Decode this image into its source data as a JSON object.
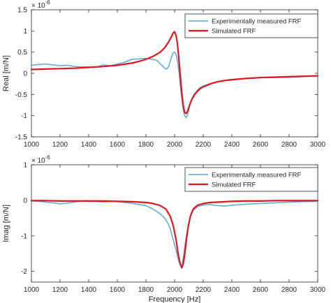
{
  "chart_data": [
    {
      "type": "line",
      "xlabel": "",
      "ylabel": "Real [m/N]",
      "exponent_label": "× 10",
      "exponent_power": "-6",
      "xlim": [
        1000,
        3000
      ],
      "ylim": [
        -1.5,
        1.5
      ],
      "xticks": [
        "1000",
        "1200",
        "1400",
        "1600",
        "1800",
        "2000",
        "2200",
        "2400",
        "2600",
        "2800",
        "3000"
      ],
      "yticks": [
        "-1.5",
        "-1",
        "-0.5",
        "0",
        "0.5",
        "1",
        "1.5"
      ],
      "legend_position": "top-right",
      "series": [
        {
          "name": "Experimentally measured FRF",
          "color": "#5aa6df",
          "x": [
            1000,
            1030,
            1060,
            1100,
            1150,
            1200,
            1250,
            1300,
            1350,
            1400,
            1450,
            1500,
            1550,
            1600,
            1650,
            1700,
            1750,
            1800,
            1850,
            1880,
            1900,
            1915,
            1930,
            1945,
            1960,
            1975,
            1990,
            2000,
            2010,
            2020,
            2030,
            2040,
            2050,
            2060,
            2070,
            2080,
            2090,
            2100,
            2110,
            2120,
            2140,
            2160,
            2180,
            2200,
            2250,
            2300,
            2350,
            2400,
            2450,
            2500,
            2550,
            2600,
            2700,
            2800,
            2900,
            3000
          ],
          "y": [
            0.19,
            0.2,
            0.21,
            0.22,
            0.2,
            0.18,
            0.19,
            0.16,
            0.15,
            0.15,
            0.14,
            0.2,
            0.18,
            0.22,
            0.26,
            0.33,
            0.34,
            0.35,
            0.33,
            0.3,
            0.22,
            0.18,
            0.12,
            0.1,
            0.17,
            0.35,
            0.48,
            0.5,
            0.44,
            0.3,
            0.05,
            -0.3,
            -0.6,
            -0.85,
            -1.0,
            -1.05,
            -0.98,
            -0.85,
            -0.7,
            -0.6,
            -0.48,
            -0.4,
            -0.33,
            -0.3,
            -0.24,
            -0.2,
            -0.18,
            -0.16,
            -0.14,
            -0.12,
            -0.12,
            -0.1,
            -0.1,
            -0.09,
            -0.08,
            -0.06
          ]
        },
        {
          "name": "Simulated FRF",
          "color": "#e0161d",
          "x": [
            1000,
            1100,
            1200,
            1300,
            1400,
            1500,
            1600,
            1700,
            1750,
            1800,
            1850,
            1900,
            1930,
            1960,
            1980,
            1990,
            2000,
            2010,
            2020,
            2030,
            2040,
            2050,
            2060,
            2070,
            2080,
            2090,
            2100,
            2110,
            2120,
            2140,
            2160,
            2180,
            2200,
            2250,
            2300,
            2350,
            2400,
            2500,
            2600,
            2700,
            2800,
            2900,
            3000
          ],
          "y": [
            0.09,
            0.1,
            0.11,
            0.12,
            0.14,
            0.16,
            0.19,
            0.24,
            0.28,
            0.33,
            0.4,
            0.5,
            0.6,
            0.75,
            0.88,
            0.95,
            0.98,
            0.9,
            0.7,
            0.35,
            -0.05,
            -0.45,
            -0.75,
            -0.92,
            -0.95,
            -0.9,
            -0.8,
            -0.7,
            -0.62,
            -0.5,
            -0.42,
            -0.36,
            -0.32,
            -0.25,
            -0.2,
            -0.17,
            -0.15,
            -0.12,
            -0.1,
            -0.09,
            -0.08,
            -0.07,
            -0.06
          ]
        }
      ]
    },
    {
      "type": "line",
      "xlabel": "Frequency [Hz]",
      "ylabel": "Imag [m/N]",
      "exponent_label": "× 10",
      "exponent_power": "-6",
      "xlim": [
        1000,
        3000
      ],
      "ylim": [
        -2.3,
        1.0
      ],
      "xticks": [
        "1000",
        "1200",
        "1400",
        "1600",
        "1800",
        "2000",
        "2200",
        "2400",
        "2600",
        "2800",
        "3000"
      ],
      "yticks": [
        "-2",
        "-1",
        "0",
        "1"
      ],
      "ytick_values": [
        -2,
        -1,
        0,
        1
      ],
      "legend_position": "top-right",
      "series": [
        {
          "name": "Experimentally measured FRF",
          "color": "#5aa6df",
          "x": [
            1000,
            1050,
            1100,
            1150,
            1200,
            1250,
            1300,
            1350,
            1400,
            1450,
            1500,
            1550,
            1600,
            1650,
            1700,
            1750,
            1800,
            1850,
            1900,
            1930,
            1950,
            1970,
            1990,
            2010,
            2030,
            2045,
            2055,
            2065,
            2075,
            2090,
            2110,
            2130,
            2160,
            2200,
            2250,
            2300,
            2350,
            2400,
            2500,
            2600,
            2700,
            2800,
            2900,
            3000
          ],
          "y": [
            -0.02,
            -0.03,
            -0.05,
            -0.07,
            -0.1,
            -0.08,
            -0.05,
            -0.02,
            -0.01,
            -0.03,
            -0.05,
            -0.03,
            -0.04,
            -0.06,
            -0.08,
            -0.12,
            -0.15,
            -0.25,
            -0.38,
            -0.5,
            -0.62,
            -0.8,
            -1.1,
            -1.4,
            -1.72,
            -1.85,
            -1.75,
            -1.5,
            -1.2,
            -0.8,
            -0.45,
            -0.28,
            -0.18,
            -0.13,
            -0.12,
            -0.15,
            -0.16,
            -0.14,
            -0.11,
            -0.09,
            -0.07,
            -0.05,
            -0.04,
            -0.03
          ]
        },
        {
          "name": "Simulated FRF",
          "color": "#e0161d",
          "x": [
            1000,
            1100,
            1200,
            1300,
            1400,
            1500,
            1600,
            1700,
            1800,
            1850,
            1900,
            1940,
            1970,
            1990,
            2010,
            2025,
            2040,
            2050,
            2060,
            2070,
            2080,
            2095,
            2110,
            2130,
            2160,
            2200,
            2250,
            2300,
            2400,
            2500,
            2600,
            2700,
            2800,
            2900,
            3000
          ],
          "y": [
            -0.01,
            -0.01,
            -0.02,
            -0.02,
            -0.02,
            -0.02,
            -0.03,
            -0.04,
            -0.06,
            -0.09,
            -0.15,
            -0.25,
            -0.45,
            -0.7,
            -1.1,
            -1.5,
            -1.8,
            -1.9,
            -1.8,
            -1.55,
            -1.2,
            -0.75,
            -0.45,
            -0.25,
            -0.14,
            -0.09,
            -0.06,
            -0.05,
            -0.03,
            -0.02,
            -0.02,
            -0.01,
            -0.01,
            -0.01,
            -0.01
          ]
        }
      ]
    }
  ]
}
